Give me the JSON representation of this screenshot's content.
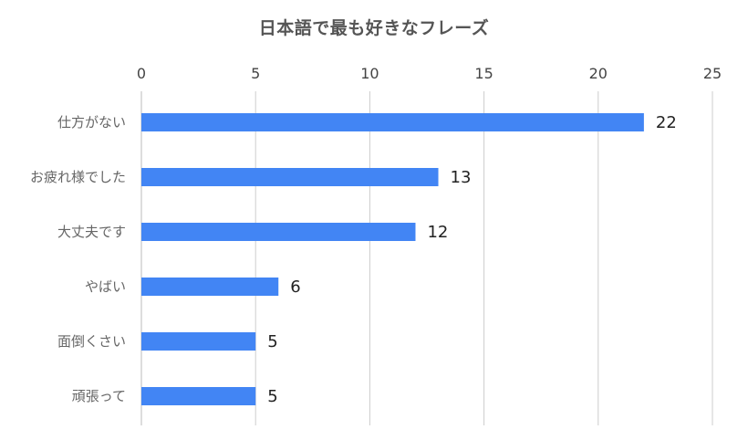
{
  "chart_data": {
    "type": "bar",
    "orientation": "horizontal",
    "title": "日本語で最も好きなフレーズ",
    "xlabel": "",
    "ylabel": "",
    "categories": [
      "仕方がない",
      "お疲れ様でした",
      "大丈夫です",
      "やばい",
      "面倒くさい",
      "頑張って"
    ],
    "values": [
      22,
      13,
      12,
      6,
      5,
      5
    ],
    "xlim": [
      0,
      25
    ],
    "ticks": [
      "0",
      "5",
      "10",
      "15",
      "20",
      "25"
    ],
    "tick_values": [
      0,
      5,
      10,
      15,
      20,
      25
    ],
    "axis_position": "top",
    "grid": true,
    "legend": "none",
    "bar_color": "#4285f4",
    "grid_color": "#cccccc",
    "data_labels": true
  }
}
